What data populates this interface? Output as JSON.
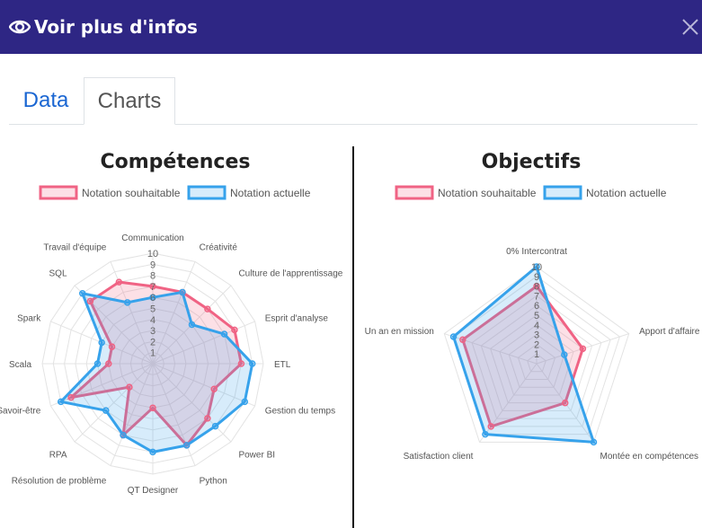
{
  "modal": {
    "title": "Voir plus d'infos",
    "icon": "eye-icon",
    "close_icon": "close-icon"
  },
  "tabs": [
    {
      "label": "Data",
      "active": false
    },
    {
      "label": "Charts",
      "active": true
    }
  ],
  "colors": {
    "header_bg": "#2e2684",
    "souhaitable": "#f06384",
    "actuelle": "#36a2eb"
  },
  "chart_data": [
    {
      "type": "radar",
      "title": "Compétences",
      "legend": [
        "Notation souhaitable",
        "Notation actuelle"
      ],
      "legend_placement": "top",
      "categories": [
        "Communication",
        "Créativité",
        "Culture de l'apprentissage",
        "Esprit d'analyse",
        "ETL",
        "Gestion du temps",
        "Power BI",
        "Python",
        "QT Designer",
        "Résolution de problème",
        "RPA",
        "Savoir-être",
        "Scala",
        "Spark",
        "SQL",
        "Travail d'équipe"
      ],
      "r_range": [
        0,
        10
      ],
      "ticks": [
        "1",
        "2",
        "3",
        "4",
        "5",
        "6",
        "7",
        "8",
        "9",
        "10"
      ],
      "grid": true,
      "series": [
        {
          "name": "Notation souhaitable",
          "values": [
            7,
            7,
            7,
            8,
            8,
            6,
            7,
            8,
            4,
            7,
            3,
            8,
            4,
            4,
            8,
            8
          ]
        },
        {
          "name": "Notation actuelle",
          "values": [
            6,
            7,
            5,
            7,
            9,
            9,
            8,
            8,
            8,
            7,
            6,
            9,
            5,
            5,
            9,
            6
          ]
        }
      ]
    },
    {
      "type": "radar",
      "title": "Objectifs",
      "legend": [
        "Notation souhaitable",
        "Notation actuelle"
      ],
      "legend_placement": "top",
      "categories": [
        "0% Intercontrat",
        "Apport d'affaire",
        "Montée en compétences",
        "Satisfaction client",
        "Un an en mission"
      ],
      "r_range": [
        0,
        10
      ],
      "ticks": [
        "1",
        "2",
        "3",
        "4",
        "5",
        "6",
        "7",
        "8",
        "9",
        "10"
      ],
      "grid": true,
      "series": [
        {
          "name": "Notation souhaitable",
          "values": [
            8,
            5,
            5,
            8,
            8
          ]
        },
        {
          "name": "Notation actuelle",
          "values": [
            10,
            3,
            10,
            9,
            9
          ]
        }
      ]
    }
  ]
}
